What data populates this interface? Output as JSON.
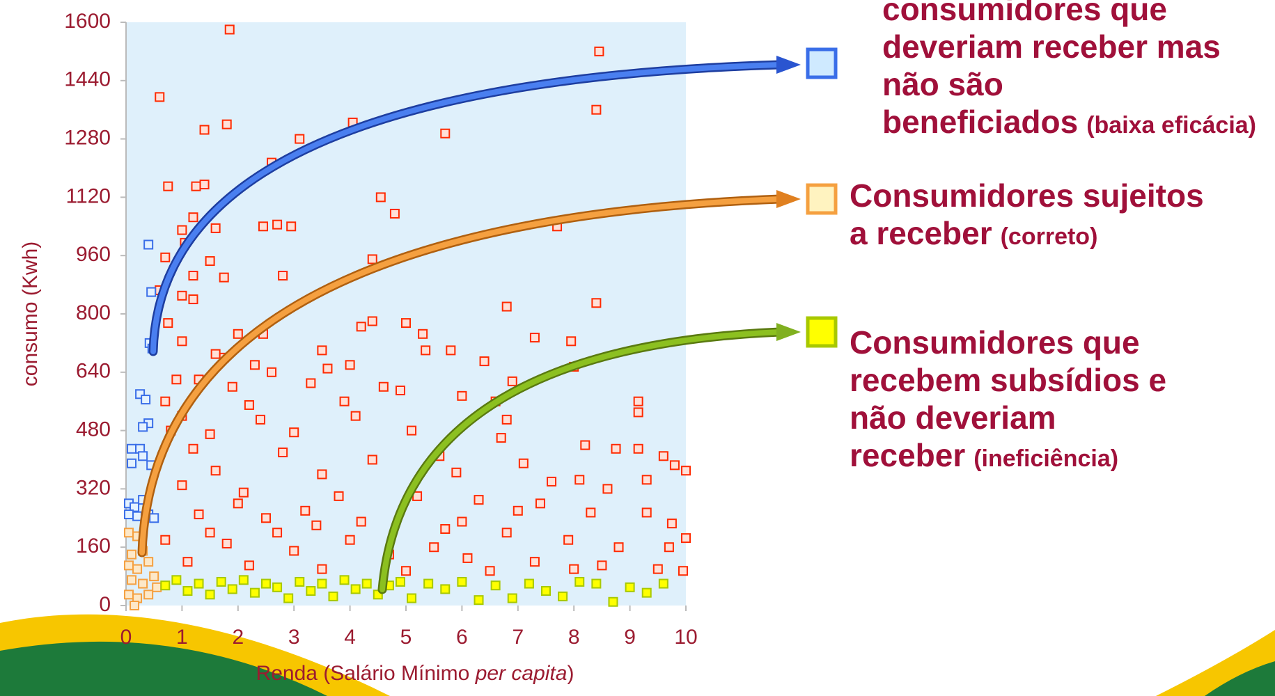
{
  "chart_data": {
    "type": "scatter",
    "xlabel": [
      "Renda (Salário Mínimo ",
      "per capita",
      ")"
    ],
    "ylabel": "consumo (Kwh)",
    "xlim": [
      0,
      10
    ],
    "xticks": [
      0,
      1,
      2,
      3,
      4,
      5,
      6,
      7,
      8,
      9,
      10
    ],
    "ylim": [
      0,
      1600
    ],
    "yticks": [
      0,
      160,
      320,
      480,
      640,
      800,
      960,
      1120,
      1280,
      1440,
      1600
    ],
    "series": [
      {
        "color": "#ff2a00",
        "x": [
          1.85,
          8.45,
          0.6,
          8.4,
          1.8,
          4.05,
          1.4,
          5.7,
          3.1,
          2.6,
          0.75,
          1.25,
          1.4,
          4.55,
          4.8,
          1.2,
          2.45,
          2.7,
          2.95,
          7.7,
          1.0,
          1.6,
          1.05,
          0.7,
          1.5,
          4.4,
          1.2,
          1.75,
          2.8,
          0.6,
          1.0,
          1.2,
          6.8,
          8.4,
          0.75,
          4.4,
          4.2,
          5.0,
          2.0,
          2.45,
          5.3,
          7.3,
          7.95,
          1.0,
          5.35,
          5.8,
          1.6,
          3.5,
          6.4,
          8.0,
          1.75,
          2.3,
          4.0,
          0.9,
          1.3,
          2.6,
          3.6,
          6.9,
          1.9,
          3.3,
          4.6,
          4.9,
          0.7,
          2.2,
          3.9,
          6.0,
          6.6,
          9.15,
          1.0,
          2.4,
          4.1,
          6.8,
          9.15,
          0.8,
          1.5,
          3.0,
          5.1,
          6.7,
          8.2,
          8.75,
          9.15,
          9.6,
          1.2,
          2.8,
          4.4,
          5.6,
          7.1,
          9.8,
          10,
          1.6,
          3.5,
          5.9,
          7.6,
          8.1,
          9.3,
          8.6,
          1.0,
          2.1,
          3.8,
          5.2,
          6.3,
          7.4,
          9.3,
          8.3,
          9.75,
          10,
          9.95,
          1.3,
          2.5,
          4.2,
          5.7,
          6.8,
          7.9,
          8.8,
          9.7,
          0.7,
          1.8,
          3.0,
          4.7,
          6.1,
          7.3,
          8.5,
          9.5,
          1.1,
          2.2,
          3.5,
          5.0,
          6.5,
          8.0,
          2.7,
          3.2,
          4.0,
          1.5,
          2.0,
          3.4,
          5.5,
          6.0,
          7.0
        ],
        "values": [
          1580,
          1520,
          1395,
          1360,
          1320,
          1325,
          1305,
          1295,
          1280,
          1215,
          1150,
          1150,
          1155,
          1120,
          1075,
          1065,
          1040,
          1045,
          1040,
          1040,
          1030,
          1035,
          995,
          955,
          945,
          950,
          905,
          900,
          905,
          865,
          850,
          840,
          820,
          830,
          775,
          780,
          765,
          775,
          745,
          745,
          745,
          735,
          725,
          725,
          700,
          700,
          690,
          700,
          670,
          655,
          680,
          660,
          660,
          620,
          620,
          640,
          650,
          615,
          600,
          610,
          600,
          590,
          560,
          550,
          560,
          575,
          560,
          560,
          520,
          510,
          520,
          510,
          530,
          480,
          470,
          475,
          480,
          460,
          440,
          430,
          430,
          410,
          430,
          420,
          400,
          410,
          390,
          385,
          370,
          370,
          360,
          365,
          340,
          345,
          345,
          320,
          330,
          310,
          300,
          300,
          290,
          280,
          255,
          255,
          225,
          185,
          95,
          250,
          240,
          230,
          210,
          200,
          180,
          160,
          160,
          180,
          170,
          150,
          140,
          130,
          120,
          110,
          100,
          120,
          110,
          100,
          95,
          95,
          100,
          200,
          260,
          180,
          200,
          280,
          220,
          160,
          230,
          260
        ]
      },
      {
        "color": "#3a6ee8",
        "x": [
          0.4,
          0.45,
          0.42,
          0.47,
          0.25,
          0.35,
          0.4,
          0.3,
          0.1,
          0.25,
          0.1,
          0.3,
          0.45,
          0.05,
          0.15,
          0.3,
          0.05,
          0.2,
          0.4,
          0.5
        ],
        "values": [
          990,
          860,
          720,
          705,
          580,
          565,
          500,
          490,
          430,
          430,
          390,
          410,
          385,
          280,
          270,
          290,
          250,
          245,
          250,
          240
        ]
      },
      {
        "color": "#f5a040",
        "x": [
          0.05,
          0.2,
          0.1,
          0.3,
          0.05,
          0.2,
          0.4,
          0.1,
          0.3,
          0.5,
          0.05,
          0.2,
          0.4,
          0.55,
          0.15
        ],
        "values": [
          200,
          190,
          140,
          150,
          110,
          100,
          120,
          70,
          60,
          80,
          30,
          20,
          30,
          50,
          0
        ]
      },
      {
        "color": "#a8c800",
        "x": [
          0.7,
          0.9,
          1.1,
          1.3,
          1.5,
          1.7,
          1.9,
          2.1,
          2.3,
          2.5,
          2.7,
          2.9,
          3.1,
          3.3,
          3.5,
          3.7,
          3.9,
          4.1,
          4.3,
          4.5,
          4.7,
          4.9,
          5.1,
          5.4,
          5.7,
          6.0,
          6.3,
          6.6,
          6.9,
          7.2,
          7.5,
          7.8,
          8.1,
          8.4,
          8.7,
          9.0,
          9.3,
          9.6
        ],
        "values": [
          55,
          70,
          40,
          60,
          30,
          65,
          45,
          70,
          35,
          60,
          50,
          20,
          65,
          40,
          60,
          25,
          70,
          45,
          60,
          30,
          55,
          65,
          20,
          60,
          45,
          65,
          15,
          55,
          20,
          60,
          40,
          25,
          65,
          60,
          10,
          50,
          35,
          60
        ]
      }
    ],
    "annotations": [
      {
        "lines": [
          "consumidores que",
          "deveriam receber mas",
          "não são beneficiados"
        ],
        "note": "(baixa eficácia)",
        "color": "#3a6ee8"
      },
      {
        "lines": [
          "Consumidores sujeitos",
          "a receber"
        ],
        "note": "(correto)",
        "color": "#f5a040"
      },
      {
        "lines": [
          "Consumidores que",
          "recebem subsídios e",
          "não deveriam receber"
        ],
        "note": "(ineficiência)",
        "color": "#a8c800"
      }
    ]
  }
}
